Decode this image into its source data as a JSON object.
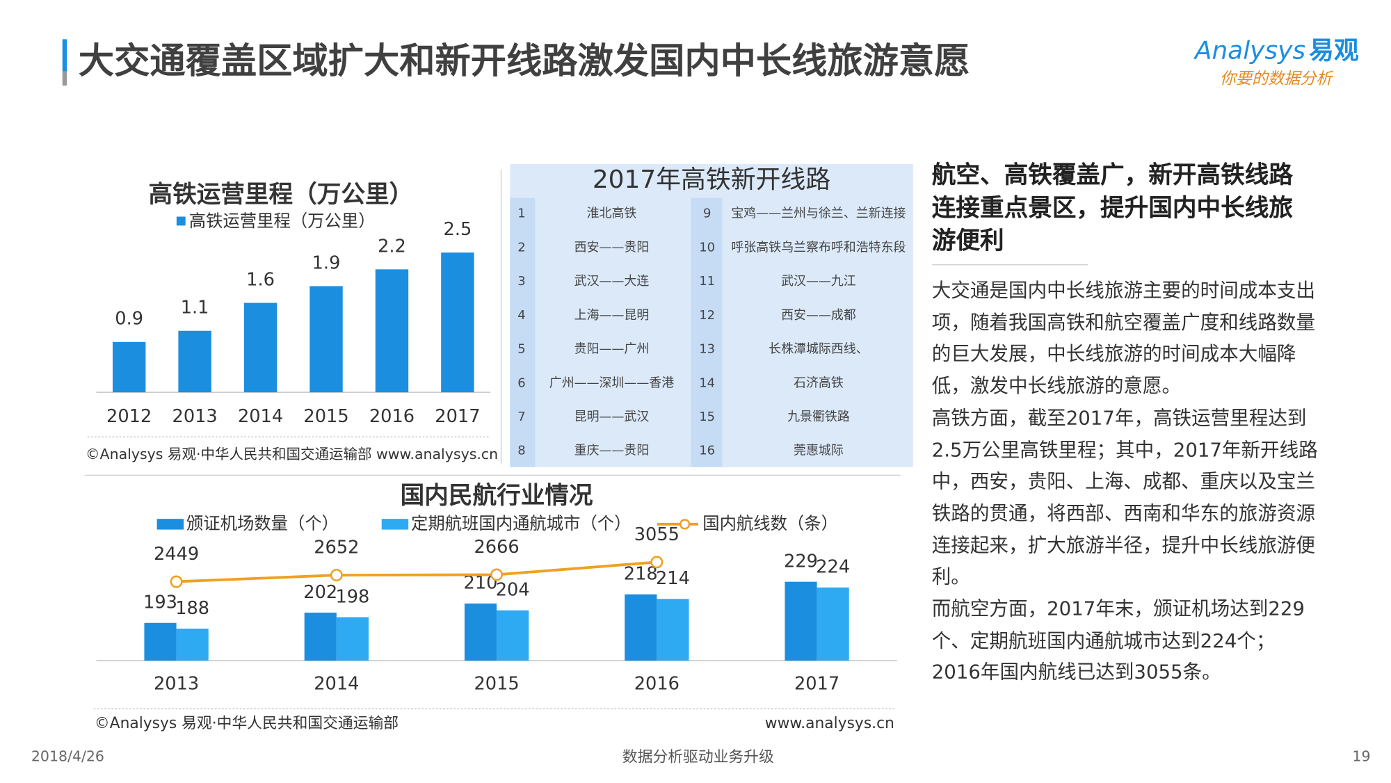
{
  "header": {
    "title": "大交通覆盖区域扩大和新开线路激发国内中长线旅游意愿",
    "logo": "Analysys",
    "logo_cn": "易观",
    "slogan": "你要的数据分析"
  },
  "chart_data": [
    {
      "type": "bar",
      "title": "高铁运营里程（万公里）",
      "categories": [
        "2012",
        "2013",
        "2014",
        "2015",
        "2016",
        "2017"
      ],
      "series": [
        {
          "name": "高铁运营里程（万公里）",
          "color": "#1b8ee0",
          "values": [
            0.9,
            1.1,
            1.6,
            1.9,
            2.2,
            2.5
          ]
        }
      ],
      "ylim": [
        0,
        3
      ],
      "source": "©Analysys 易观·中华人民共和国交通运输部 www.analysys.cn"
    },
    {
      "type": "bar",
      "title": "国内民航行业情况",
      "categories": [
        "2013",
        "2014",
        "2015",
        "2016",
        "2017"
      ],
      "series": [
        {
          "name": "颁证机场数量（个）",
          "color": "#1b8ee0",
          "values": [
            193,
            202,
            210,
            218,
            229
          ]
        },
        {
          "name": "定期航班国内通航城市（个）",
          "color": "#2eaaf2",
          "values": [
            188,
            198,
            204,
            214,
            224
          ]
        },
        {
          "name": "国内航线数（条）",
          "color": "#f0a020",
          "type": "line",
          "axis": "y2",
          "values": [
            2449,
            2652,
            2666,
            3055,
            null
          ]
        }
      ],
      "ylim": [
        160,
        270
      ],
      "y2lim": [
        0,
        3900
      ],
      "source": "©Analysys 易观·中华人民共和国交通运输部",
      "source_url": "www.analysys.cn"
    }
  ],
  "table": {
    "title": "2017年高铁新开线路",
    "rows": [
      [
        "1",
        "淮北高铁",
        "9",
        "宝鸡——兰州与徐兰、兰新连接"
      ],
      [
        "2",
        "西安——贵阳",
        "10",
        "呼张高铁乌兰察布呼和浩特东段"
      ],
      [
        "3",
        "武汉——大连",
        "11",
        "武汉——九江"
      ],
      [
        "4",
        "上海——昆明",
        "12",
        "西安——成都"
      ],
      [
        "5",
        "贵阳——广州",
        "13",
        "长株潭城际西线、"
      ],
      [
        "6",
        "广州——深圳——香港",
        "14",
        "石济高铁"
      ],
      [
        "7",
        "昆明——武汉",
        "15",
        "九景衢铁路"
      ],
      [
        "8",
        "重庆——贵阳",
        "16",
        "莞惠城际"
      ]
    ]
  },
  "sidebar": {
    "heading": "航空、高铁覆盖广，新开高铁线路连接重点景区，提升国内中长线旅游便利",
    "paragraphs": [
      "大交通是国内中长线旅游主要的时间成本支出项，随着我国高铁和航空覆盖广度和线路数量的巨大发展，中长线旅游的时间成本大幅降低，激发中长线旅游的意愿。",
      "高铁方面，截至2017年，高铁运营里程达到2.5万公里高铁里程；其中，2017年新开线路中，西安，贵阳、上海、成都、重庆以及宝兰铁路的贯通，将西部、西南和华东的旅游资源连接起来，扩大旅游半径，提升中长线旅游便利。",
      "而航空方面，2017年末，颁证机场达到229个、定期航班国内通航城市达到224个；2016年国内航线已达到3055条。"
    ]
  },
  "footer": {
    "date": "2018/4/26",
    "slogan": "数据分析驱动业务升级",
    "page": "19"
  }
}
